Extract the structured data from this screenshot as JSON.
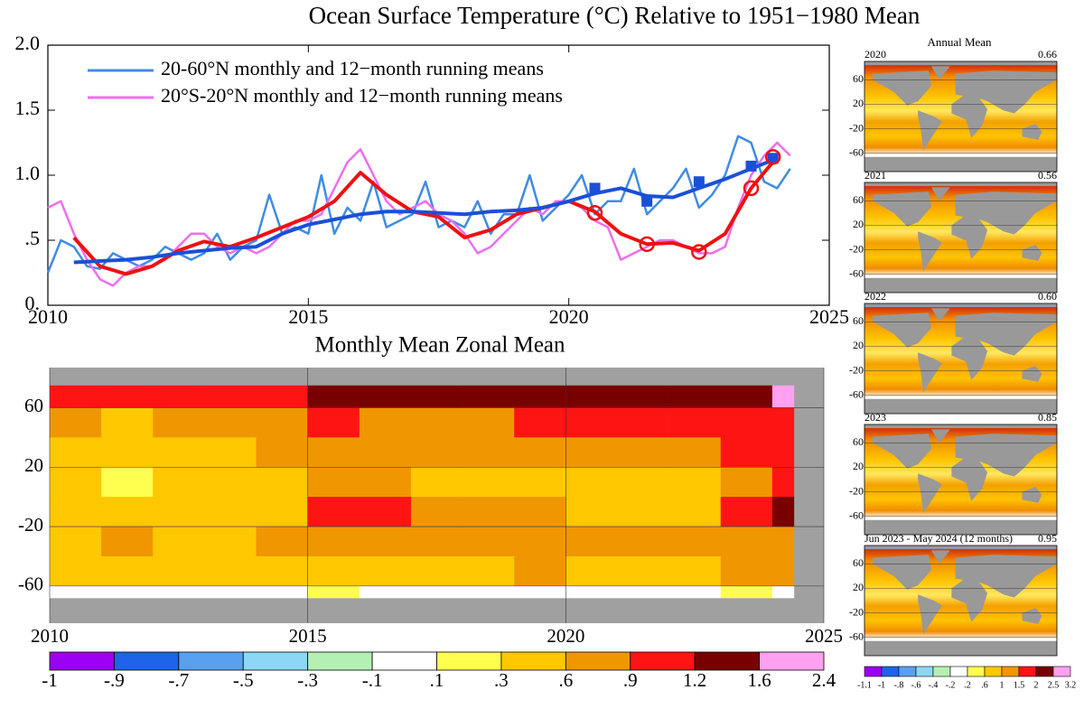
{
  "chart_data": [
    {
      "type": "line",
      "title": "Ocean Surface Temperature (°C) Relative to 1951−1980 Mean",
      "xlim": [
        2010,
        2025
      ],
      "xticks": [
        2010,
        2015,
        2020,
        2025
      ],
      "ylim": [
        0,
        2
      ],
      "yticks": [
        {
          "value": 0,
          "label": "0."
        },
        {
          "value": 0.5,
          "label": ".5"
        },
        {
          "value": 1,
          "label": "1.0"
        },
        {
          "value": 1.5,
          "label": "1.5"
        },
        {
          "value": 2,
          "label": "2.0"
        }
      ],
      "x": [
        2010,
        2010.25,
        2010.5,
        2010.75,
        2011,
        2011.25,
        2011.5,
        2011.75,
        2012,
        2012.25,
        2012.5,
        2012.75,
        2013,
        2013.25,
        2013.5,
        2013.75,
        2014,
        2014.25,
        2014.5,
        2014.75,
        2015,
        2015.25,
        2015.5,
        2015.75,
        2016,
        2016.25,
        2016.5,
        2016.75,
        2017,
        2017.25,
        2017.5,
        2017.75,
        2018,
        2018.25,
        2018.5,
        2018.75,
        2019,
        2019.25,
        2019.5,
        2019.75,
        2020,
        2020.25,
        2020.5,
        2020.75,
        2021,
        2021.25,
        2021.5,
        2021.75,
        2022,
        2022.25,
        2022.5,
        2022.75,
        2023,
        2023.25,
        2023.5,
        2023.75,
        2024,
        2024.25
      ],
      "running_x": [
        2010.5,
        2011,
        2011.5,
        2012,
        2012.5,
        2013,
        2013.5,
        2014,
        2014.5,
        2015,
        2015.5,
        2016,
        2016.5,
        2017,
        2017.5,
        2018,
        2018.5,
        2019,
        2019.5,
        2020,
        2020.5,
        2021,
        2021.5,
        2022,
        2022.5,
        2023,
        2023.5,
        2024
      ],
      "annual_x": [
        2020.5,
        2021.5,
        2022.5,
        2023.5,
        2023.92
      ],
      "series": [
        {
          "name": "20-60°N monthly and 12−month running means",
          "color": "#3f8ce3",
          "values": [
            0.25,
            0.5,
            0.45,
            0.3,
            0.28,
            0.4,
            0.35,
            0.3,
            0.35,
            0.45,
            0.4,
            0.35,
            0.4,
            0.55,
            0.35,
            0.45,
            0.5,
            0.85,
            0.55,
            0.6,
            0.55,
            1.0,
            0.55,
            0.75,
            0.65,
            0.95,
            0.6,
            0.65,
            0.7,
            0.95,
            0.6,
            0.65,
            0.6,
            0.8,
            0.55,
            0.7,
            0.7,
            1.0,
            0.65,
            0.75,
            0.85,
            1.0,
            0.7,
            0.8,
            0.8,
            1.05,
            0.7,
            0.8,
            0.9,
            1.05,
            0.75,
            0.85,
            1.0,
            1.3,
            1.25,
            0.95,
            0.9,
            1.05
          ],
          "running_color": "#1a4fd8",
          "running_values": [
            0.33,
            0.34,
            0.35,
            0.37,
            0.4,
            0.42,
            0.44,
            0.45,
            0.55,
            0.62,
            0.66,
            0.7,
            0.72,
            0.72,
            0.71,
            0.7,
            0.72,
            0.73,
            0.75,
            0.8,
            0.86,
            0.9,
            0.84,
            0.83,
            0.9,
            0.97,
            1.05,
            1.13
          ],
          "annual_values": [
            0.9,
            0.8,
            0.95,
            1.07,
            1.13
          ],
          "annual_marker": "square"
        },
        {
          "name": "20°S-20°N monthly and 12−month running means",
          "color": "#ee6ef0",
          "values": [
            0.75,
            0.8,
            0.55,
            0.35,
            0.2,
            0.15,
            0.25,
            0.3,
            0.3,
            0.35,
            0.45,
            0.55,
            0.55,
            0.45,
            0.4,
            0.45,
            0.4,
            0.45,
            0.55,
            0.65,
            0.65,
            0.7,
            0.9,
            1.1,
            1.2,
            1.0,
            0.8,
            0.7,
            0.75,
            0.8,
            0.7,
            0.65,
            0.55,
            0.4,
            0.45,
            0.55,
            0.65,
            0.75,
            0.7,
            0.8,
            0.8,
            0.75,
            0.65,
            0.6,
            0.35,
            0.4,
            0.45,
            0.5,
            0.5,
            0.45,
            0.4,
            0.4,
            0.45,
            0.75,
            1.0,
            1.15,
            1.25,
            1.15
          ],
          "running_color": "#ee1111",
          "running_values": [
            0.52,
            0.3,
            0.24,
            0.3,
            0.42,
            0.49,
            0.45,
            0.52,
            0.6,
            0.68,
            0.8,
            1.02,
            0.85,
            0.72,
            0.68,
            0.52,
            0.58,
            0.7,
            0.75,
            0.8,
            0.72,
            0.55,
            0.47,
            0.48,
            0.42,
            0.55,
            0.9,
            1.14
          ],
          "annual_values": [
            0.71,
            0.47,
            0.41,
            0.9,
            1.14
          ],
          "annual_marker": "circle"
        }
      ]
    },
    {
      "type": "heatmap",
      "title": "Monthly Mean Zonal Mean",
      "xlim": [
        2010,
        2025
      ],
      "xticks": [
        2010,
        2015,
        2020,
        2025
      ],
      "ylim": [
        -85,
        87
      ],
      "yticks": [
        60,
        20,
        -20,
        -60
      ],
      "x_edges": [
        2010,
        2011,
        2012,
        2013,
        2014,
        2015,
        2016,
        2017,
        2018,
        2019,
        2020,
        2021,
        2022,
        2023,
        2024,
        2024.42
      ],
      "lat_edges": [
        75,
        60,
        40,
        20,
        0,
        -20,
        -40,
        -60,
        -68
      ],
      "values": [
        [
          0.9,
          0.9,
          1.0,
          1.1,
          1.0,
          1.3,
          1.4,
          1.3,
          1.2,
          1.3,
          1.4,
          1.3,
          1.4,
          1.5,
          1.7
        ],
        [
          0.6,
          0.5,
          0.6,
          0.7,
          0.8,
          0.9,
          0.8,
          0.8,
          0.7,
          0.9,
          0.9,
          0.9,
          1.0,
          1.1,
          1.0
        ],
        [
          0.4,
          0.4,
          0.4,
          0.5,
          0.6,
          0.7,
          0.7,
          0.6,
          0.6,
          0.7,
          0.8,
          0.7,
          0.7,
          0.9,
          0.9
        ],
        [
          0.5,
          0.2,
          0.3,
          0.4,
          0.5,
          0.8,
          0.7,
          0.5,
          0.4,
          0.5,
          0.5,
          0.4,
          0.4,
          0.8,
          1.0
        ],
        [
          0.5,
          0.3,
          0.3,
          0.4,
          0.5,
          1.0,
          1.1,
          0.6,
          0.6,
          0.7,
          0.5,
          0.5,
          0.5,
          0.9,
          1.3
        ],
        [
          0.5,
          0.6,
          0.5,
          0.5,
          0.6,
          0.7,
          0.7,
          0.6,
          0.6,
          0.6,
          0.6,
          0.6,
          0.6,
          0.7,
          0.8
        ],
        [
          0.4,
          0.4,
          0.4,
          0.5,
          0.5,
          0.5,
          0.4,
          0.5,
          0.5,
          0.6,
          0.5,
          0.5,
          0.5,
          0.6,
          0.6
        ],
        [
          0.0,
          -0.1,
          0.0,
          0.0,
          0.0,
          0.1,
          0.0,
          -0.1,
          0.0,
          0.0,
          0.0,
          0.0,
          0.0,
          0.1,
          0.0
        ]
      ],
      "colorbar": {
        "ticks": [
          -1,
          {
            "value": -0.9,
            "label": "-.9"
          },
          {
            "value": -0.7,
            "label": "-.7"
          },
          {
            "value": -0.5,
            "label": "-.5"
          },
          {
            "value": -0.3,
            "label": "-.3"
          },
          {
            "value": -0.1,
            "label": "-.1"
          },
          {
            "value": 0.1,
            "label": ".1"
          },
          {
            "value": 0.3,
            "label": ".3"
          },
          {
            "value": 0.6,
            "label": ".6"
          },
          {
            "value": 0.9,
            "label": ".9"
          },
          1.2,
          1.6,
          2.4
        ],
        "colors": [
          "#9b00f0",
          "#1e64e6",
          "#5aa0f0",
          "#8cd7f5",
          "#b4f0b4",
          "#ffffff",
          "#ffff50",
          "#ffc800",
          "#f09600",
          "#ff1414",
          "#780000",
          "#ffa0f0"
        ]
      }
    },
    {
      "type": "maps",
      "title": "Annual Mean",
      "categories": [
        "2020",
        "2021",
        "2022",
        "2023",
        "Jun 2023 - May 2024 (12 months)"
      ],
      "values": [
        0.66,
        0.56,
        0.6,
        0.85,
        0.95
      ],
      "value_labels": [
        "0.66",
        "0.56",
        "0.60",
        "0.85",
        "0.95"
      ],
      "yticks": [
        60,
        20,
        -20,
        -60
      ],
      "colorbar": {
        "ticks": [
          -1.1,
          -1,
          {
            "value": -0.8,
            "label": "-.8"
          },
          {
            "value": -0.6,
            "label": "-.6"
          },
          {
            "value": -0.4,
            "label": "-.4"
          },
          {
            "value": -0.2,
            "label": "-.2"
          },
          {
            "value": 0.2,
            "label": ".2"
          },
          {
            "value": 0.6,
            "label": ".6"
          },
          1,
          1.5,
          2,
          2.5,
          3.2
        ],
        "colors": [
          "#9b00f0",
          "#1e64e6",
          "#5aa0f0",
          "#8cd7f5",
          "#b4f0b4",
          "#ffffff",
          "#ffff50",
          "#ffc800",
          "#f09600",
          "#ff1414",
          "#780000",
          "#ffa0f0"
        ]
      }
    }
  ]
}
